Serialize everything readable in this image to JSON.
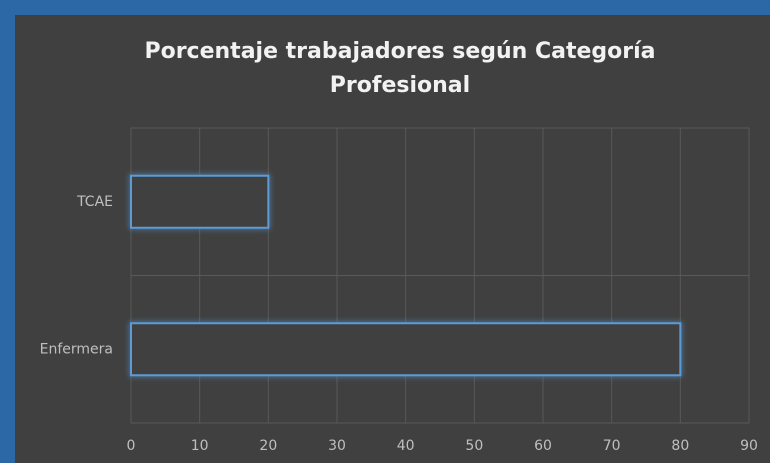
{
  "chart_data": {
    "type": "bar",
    "orientation": "horizontal",
    "title": "Porcentaje trabajadores según Categoría Profesional",
    "categories": [
      "Enfermera",
      "TCAE"
    ],
    "values": [
      80,
      20
    ],
    "color": "#5b9bd5",
    "xlim": [
      0,
      90
    ],
    "xticks": [
      0,
      10,
      20,
      30,
      40,
      50,
      60,
      70,
      80,
      90
    ],
    "grid": true
  }
}
